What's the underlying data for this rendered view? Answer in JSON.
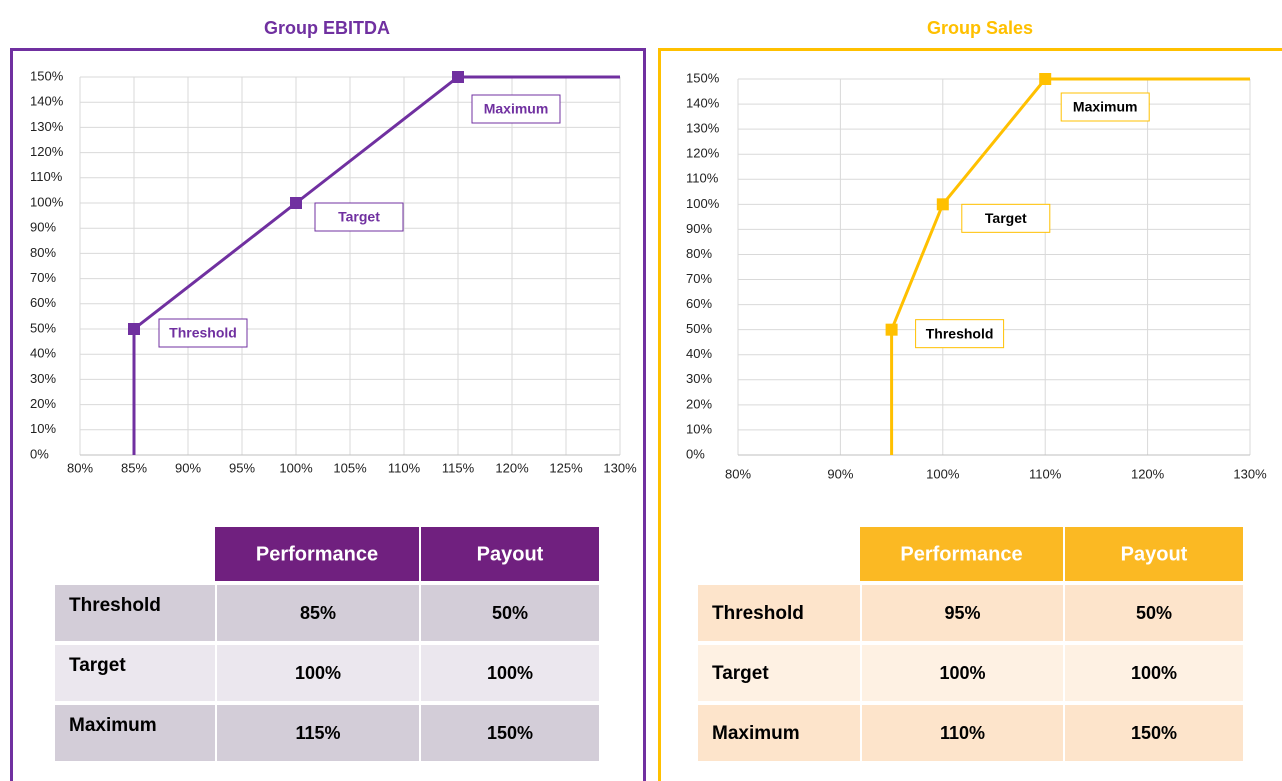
{
  "chart_data": [
    {
      "type": "line",
      "title": "Group EBITDA",
      "color": "#7030a0",
      "x": [
        85,
        85,
        100,
        115,
        130
      ],
      "values": [
        0,
        50,
        100,
        150,
        150
      ],
      "annotations": [
        {
          "text": "Threshold",
          "x": 85,
          "y": 50
        },
        {
          "text": "Target",
          "x": 100,
          "y": 100
        },
        {
          "text": "Maximum",
          "x": 115,
          "y": 150
        }
      ],
      "xlim": [
        80,
        130
      ],
      "xticks": [
        {
          "value": 80,
          "label": "80%"
        },
        {
          "value": 85,
          "label": "85%"
        },
        {
          "value": 90,
          "label": "90%"
        },
        {
          "value": 95,
          "label": "95%"
        },
        {
          "value": 100,
          "label": "100%"
        },
        {
          "value": 105,
          "label": "105%"
        },
        {
          "value": 110,
          "label": "110%"
        },
        {
          "value": 115,
          "label": "115%"
        },
        {
          "value": 120,
          "label": "120%"
        },
        {
          "value": 125,
          "label": "125%"
        },
        {
          "value": 130,
          "label": "130%"
        }
      ],
      "ylim": [
        0,
        150
      ],
      "yticks": [
        {
          "value": 0,
          "label": "0%"
        },
        {
          "value": 10,
          "label": "10%"
        },
        {
          "value": 20,
          "label": "20%"
        },
        {
          "value": 30,
          "label": "30%"
        },
        {
          "value": 40,
          "label": "40%"
        },
        {
          "value": 50,
          "label": "50%"
        },
        {
          "value": 60,
          "label": "60%"
        },
        {
          "value": 70,
          "label": "70%"
        },
        {
          "value": 80,
          "label": "80%"
        },
        {
          "value": 90,
          "label": "90%"
        },
        {
          "value": 100,
          "label": "100%"
        },
        {
          "value": 110,
          "label": "110%"
        },
        {
          "value": 120,
          "label": "120%"
        },
        {
          "value": 130,
          "label": "130%"
        },
        {
          "value": 140,
          "label": "140%"
        },
        {
          "value": 150,
          "label": "150%"
        }
      ],
      "grid": true
    },
    {
      "type": "line",
      "title": "Group Sales",
      "color": "#ffc000",
      "x": [
        95,
        95,
        100,
        110,
        130
      ],
      "values": [
        0,
        50,
        100,
        150,
        150
      ],
      "annotations": [
        {
          "text": "Threshold",
          "x": 95,
          "y": 50
        },
        {
          "text": "Target",
          "x": 100,
          "y": 100
        },
        {
          "text": "Maximum",
          "x": 110,
          "y": 150
        }
      ],
      "xlim": [
        80,
        130
      ],
      "xticks": [
        {
          "value": 80,
          "label": "80%"
        },
        {
          "value": 90,
          "label": "90%"
        },
        {
          "value": 100,
          "label": "100%"
        },
        {
          "value": 110,
          "label": "110%"
        },
        {
          "value": 120,
          "label": "120%"
        },
        {
          "value": 130,
          "label": "130%"
        }
      ],
      "ylim": [
        0,
        150
      ],
      "yticks": [
        {
          "value": 0,
          "label": "0%"
        },
        {
          "value": 10,
          "label": "10%"
        },
        {
          "value": 20,
          "label": "20%"
        },
        {
          "value": 30,
          "label": "30%"
        },
        {
          "value": 40,
          "label": "40%"
        },
        {
          "value": 50,
          "label": "50%"
        },
        {
          "value": 60,
          "label": "60%"
        },
        {
          "value": 70,
          "label": "70%"
        },
        {
          "value": 80,
          "label": "80%"
        },
        {
          "value": 90,
          "label": "90%"
        },
        {
          "value": 100,
          "label": "100%"
        },
        {
          "value": 110,
          "label": "110%"
        },
        {
          "value": 120,
          "label": "120%"
        },
        {
          "value": 130,
          "label": "130%"
        },
        {
          "value": 140,
          "label": "140%"
        },
        {
          "value": 150,
          "label": "150%"
        }
      ],
      "grid": true
    }
  ],
  "tables": [
    {
      "header": [
        "Performance",
        "Payout"
      ],
      "rows": [
        [
          "Threshold",
          "85%",
          "50%"
        ],
        [
          "Target",
          "100%",
          "100%"
        ],
        [
          "Maximum",
          "115%",
          "150%"
        ]
      ]
    },
    {
      "header": [
        "Performance",
        "Payout"
      ],
      "rows": [
        [
          "Threshold",
          "95%",
          "50%"
        ],
        [
          "Target",
          "100%",
          "100%"
        ],
        [
          "Maximum",
          "110%",
          "150%"
        ]
      ]
    }
  ]
}
